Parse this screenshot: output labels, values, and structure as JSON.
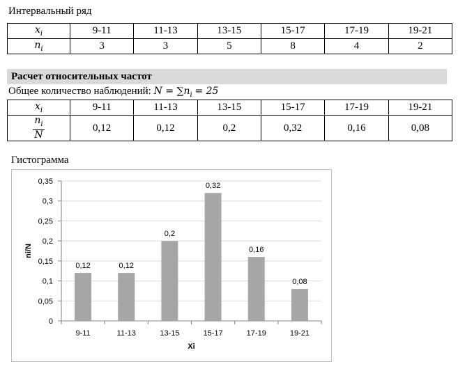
{
  "section1": {
    "title": "Интервальный ряд",
    "table": {
      "rows": [
        {
          "label": {
            "base": "x",
            "sub": "i"
          },
          "cells": [
            "9-11",
            "11-13",
            "13-15",
            "15-17",
            "17-19",
            "19-21"
          ]
        },
        {
          "label": {
            "base": "n",
            "sub": "i"
          },
          "cells": [
            3,
            3,
            5,
            8,
            4,
            2
          ]
        }
      ]
    }
  },
  "section2": {
    "title": "Расчет относительных частот",
    "total": {
      "text": "Общее количество наблюдений:",
      "formula": "N = ∑",
      "var": "n",
      "sub": "i",
      "result": "= 25"
    },
    "table": {
      "rows": [
        {
          "label": {
            "base": "x",
            "sub": "i"
          },
          "cells": [
            "9-11",
            "11-13",
            "13-15",
            "15-17",
            "17-19",
            "19-21"
          ]
        },
        {
          "label": {
            "num": {
              "base": "n",
              "sub": "i"
            },
            "den": "N"
          },
          "cells": [
            "0,12",
            "0,12",
            "0,2",
            "0,32",
            "0,16",
            "0,08"
          ]
        }
      ]
    }
  },
  "section3": {
    "title": "Гистограмма"
  },
  "chart_data": {
    "type": "bar",
    "categories": [
      "9-11",
      "11-13",
      "13-15",
      "15-17",
      "17-19",
      "19-21"
    ],
    "values": [
      0.12,
      0.12,
      0.2,
      0.32,
      0.16,
      0.08
    ],
    "value_labels": [
      "0,12",
      "0,12",
      "0,2",
      "0,32",
      "0,16",
      "0,08"
    ],
    "color": "#a6a6a6",
    "xlabel": "Xi",
    "ylabel": "ni/N",
    "grid": true,
    "ylim": [
      0,
      0.35
    ],
    "yticks": [
      0,
      {
        "value": 0.05,
        "label": "0,05"
      },
      {
        "value": 0.1,
        "label": "0,1"
      },
      {
        "value": 0.15,
        "label": "0,15"
      },
      {
        "value": 0.2,
        "label": "0,2"
      },
      {
        "value": 0.25,
        "label": "0,25"
      },
      {
        "value": 0.3,
        "label": "0,3"
      },
      {
        "value": 0.35,
        "label": "0,35"
      }
    ]
  }
}
